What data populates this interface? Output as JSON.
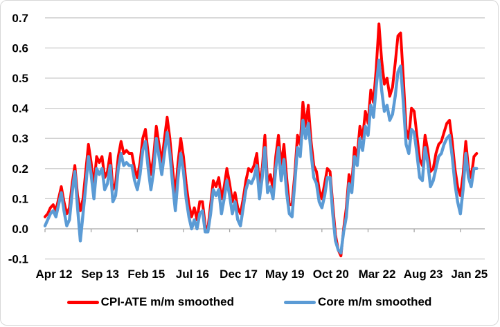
{
  "chart_data": {
    "type": "line",
    "title": "",
    "frequency": "monthly",
    "x_start": "Apr 2012",
    "x_end": "Jul 2025",
    "grid": true,
    "legend_position": "bottom",
    "ylim": [
      -0.1,
      0.7
    ],
    "y_ticks": [
      "0.7",
      "0.6",
      "0.5",
      "0.4",
      "0.3",
      "0.2",
      "0.1",
      "0.0",
      "-0.1"
    ],
    "x_tick_labels": [
      "Apr 12",
      "Sep 13",
      "Feb 15",
      "Jul 16",
      "Dec 17",
      "May 19",
      "Oct 20",
      "Mar 22",
      "Aug 23",
      "Jan 25"
    ],
    "x_tick_indices": [
      0,
      17,
      34,
      51,
      68,
      85,
      102,
      119,
      136,
      153
    ],
    "x": [
      "Apr 12",
      "May 12",
      "Jun 12",
      "Jul 12",
      "Aug 12",
      "Sep 12",
      "Oct 12",
      "Nov 12",
      "Dec 12",
      "Jan 13",
      "Feb 13",
      "Mar 13",
      "Apr 13",
      "May 13",
      "Jun 13",
      "Jul 13",
      "Aug 13",
      "Sep 13",
      "Oct 13",
      "Nov 13",
      "Dec 13",
      "Jan 14",
      "Feb 14",
      "Mar 14",
      "Apr 14",
      "May 14",
      "Jun 14",
      "Jul 14",
      "Aug 14",
      "Sep 14",
      "Oct 14",
      "Nov 14",
      "Dec 14",
      "Jan 15",
      "Feb 15",
      "Mar 15",
      "Apr 15",
      "May 15",
      "Jun 15",
      "Jul 15",
      "Aug 15",
      "Sep 15",
      "Oct 15",
      "Nov 15",
      "Dec 15",
      "Jan 16",
      "Feb 16",
      "Mar 16",
      "Apr 16",
      "May 16",
      "Jun 16",
      "Jul 16",
      "Aug 16",
      "Sep 16",
      "Oct 16",
      "Nov 16",
      "Dec 16",
      "Jan 17",
      "Feb 17",
      "Mar 17",
      "Apr 17",
      "May 17",
      "Jun 17",
      "Jul 17",
      "Aug 17",
      "Sep 17",
      "Oct 17",
      "Nov 17",
      "Dec 17",
      "Jan 18",
      "Feb 18",
      "Mar 18",
      "Apr 18",
      "May 18",
      "Jun 18",
      "Jul 18",
      "Aug 18",
      "Sep 18",
      "Oct 18",
      "Nov 18",
      "Dec 18",
      "Jan 19",
      "Feb 19",
      "Mar 19",
      "Apr 19",
      "May 19",
      "Jun 19",
      "Jul 19",
      "Aug 19",
      "Sep 19",
      "Oct 19",
      "Nov 19",
      "Dec 19",
      "Jan 20",
      "Feb 20",
      "Mar 20",
      "Apr 20",
      "May 20",
      "Jun 20",
      "Jul 20",
      "Aug 20",
      "Sep 20",
      "Oct 20",
      "Nov 20",
      "Dec 20",
      "Jan 21",
      "Feb 21",
      "Mar 21",
      "Apr 21",
      "May 21",
      "Jun 21",
      "Jul 21",
      "Aug 21",
      "Sep 21",
      "Oct 21",
      "Nov 21",
      "Dec 21",
      "Jan 22",
      "Feb 22",
      "Mar 22",
      "Apr 22",
      "May 22",
      "Jun 22",
      "Jul 22",
      "Aug 22",
      "Sep 22",
      "Oct 22",
      "Nov 22",
      "Dec 22",
      "Jan 23",
      "Feb 23",
      "Mar 23",
      "Apr 23",
      "May 23",
      "Jun 23",
      "Jul 23",
      "Aug 23",
      "Sep 23",
      "Oct 23",
      "Nov 23",
      "Dec 23",
      "Jan 24",
      "Feb 24",
      "Mar 24",
      "Apr 24",
      "May 24",
      "Jun 24",
      "Jul 24",
      "Aug 24",
      "Sep 24",
      "Oct 24",
      "Nov 24",
      "Dec 24",
      "Jan 25",
      "Feb 25",
      "Mar 25",
      "Apr 25",
      "May 25",
      "Jun 25",
      "Jul 25"
    ],
    "series": [
      {
        "name": "CPI-ATE m/m smoothed",
        "color": "#FF0000",
        "values": [
          0.04,
          0.05,
          0.07,
          0.08,
          0.06,
          0.1,
          0.14,
          0.09,
          0.05,
          0.07,
          0.15,
          0.21,
          0.11,
          0.06,
          0.1,
          0.19,
          0.28,
          0.22,
          0.14,
          0.24,
          0.22,
          0.24,
          0.17,
          0.19,
          0.25,
          0.13,
          0.15,
          0.24,
          0.29,
          0.25,
          0.26,
          0.25,
          0.25,
          0.2,
          0.17,
          0.22,
          0.3,
          0.33,
          0.25,
          0.18,
          0.24,
          0.34,
          0.28,
          0.22,
          0.3,
          0.37,
          0.3,
          0.2,
          0.11,
          0.22,
          0.3,
          0.24,
          0.15,
          0.08,
          0.04,
          0.07,
          0.03,
          0.09,
          0.09,
          0.01,
          0.0,
          0.08,
          0.16,
          0.14,
          0.17,
          0.1,
          0.14,
          0.2,
          0.15,
          0.09,
          0.12,
          0.07,
          0.05,
          0.1,
          0.16,
          0.2,
          0.19,
          0.21,
          0.25,
          0.14,
          0.2,
          0.31,
          0.15,
          0.18,
          0.13,
          0.24,
          0.31,
          0.21,
          0.28,
          0.17,
          0.08,
          0.08,
          0.18,
          0.31,
          0.28,
          0.42,
          0.34,
          0.41,
          0.29,
          0.21,
          0.19,
          0.13,
          0.1,
          0.15,
          0.2,
          0.19,
          0.08,
          -0.02,
          -0.07,
          -0.09,
          0.0,
          0.07,
          0.18,
          0.15,
          0.27,
          0.24,
          0.34,
          0.3,
          0.39,
          0.35,
          0.46,
          0.42,
          0.53,
          0.68,
          0.56,
          0.48,
          0.5,
          0.44,
          0.47,
          0.55,
          0.64,
          0.65,
          0.5,
          0.33,
          0.3,
          0.4,
          0.39,
          0.31,
          0.23,
          0.21,
          0.31,
          0.26,
          0.19,
          0.2,
          0.25,
          0.28,
          0.29,
          0.32,
          0.35,
          0.36,
          0.29,
          0.2,
          0.14,
          0.11,
          0.18,
          0.29,
          0.2,
          0.17,
          0.24,
          0.25
        ]
      },
      {
        "name": "Core m/m smoothed",
        "color": "#5B9BD5",
        "values": [
          0.01,
          0.03,
          0.05,
          0.06,
          0.04,
          0.08,
          0.12,
          0.06,
          0.01,
          0.03,
          0.12,
          0.19,
          0.07,
          -0.04,
          0.05,
          0.14,
          0.24,
          0.18,
          0.1,
          0.2,
          0.18,
          0.2,
          0.13,
          0.15,
          0.21,
          0.09,
          0.11,
          0.2,
          0.25,
          0.21,
          0.22,
          0.21,
          0.21,
          0.16,
          0.13,
          0.18,
          0.26,
          0.29,
          0.2,
          0.13,
          0.19,
          0.3,
          0.24,
          0.18,
          0.25,
          0.32,
          0.25,
          0.15,
          0.06,
          0.17,
          0.25,
          0.19,
          0.1,
          0.04,
          0.0,
          0.03,
          0.0,
          0.05,
          0.06,
          -0.01,
          -0.01,
          0.05,
          0.13,
          0.11,
          0.13,
          0.05,
          0.1,
          0.16,
          0.11,
          0.05,
          0.09,
          0.03,
          0.01,
          0.07,
          0.13,
          0.16,
          0.15,
          0.17,
          0.21,
          0.1,
          0.17,
          0.27,
          0.12,
          0.14,
          0.1,
          0.2,
          0.27,
          0.16,
          0.23,
          0.12,
          0.05,
          0.04,
          0.15,
          0.27,
          0.24,
          0.36,
          0.3,
          0.35,
          0.25,
          0.17,
          0.15,
          0.09,
          0.07,
          0.11,
          0.17,
          0.17,
          0.05,
          -0.04,
          -0.07,
          -0.08,
          -0.01,
          0.04,
          0.15,
          0.12,
          0.24,
          0.21,
          0.3,
          0.26,
          0.34,
          0.31,
          0.41,
          0.37,
          0.47,
          0.56,
          0.46,
          0.39,
          0.41,
          0.36,
          0.38,
          0.44,
          0.52,
          0.54,
          0.42,
          0.28,
          0.25,
          0.33,
          0.32,
          0.25,
          0.17,
          0.16,
          0.27,
          0.22,
          0.14,
          0.16,
          0.2,
          0.24,
          0.25,
          0.28,
          0.3,
          0.31,
          0.24,
          0.15,
          0.09,
          0.05,
          0.13,
          0.25,
          0.17,
          0.14,
          0.2,
          0.2
        ]
      }
    ]
  },
  "colors": {
    "series_red": "#FF0000",
    "series_blue": "#5B9BD5",
    "gridline": "#C9C9C9",
    "axis": "#A6A6A6",
    "text": "#000000",
    "frame_border": "#D7D7D7",
    "background": "#FFFFFF"
  },
  "legend": {
    "items": [
      {
        "label": "CPI-ATE m/m smoothed",
        "color": "#FF0000"
      },
      {
        "label": "Core m/m smoothed",
        "color": "#5B9BD5"
      }
    ]
  }
}
